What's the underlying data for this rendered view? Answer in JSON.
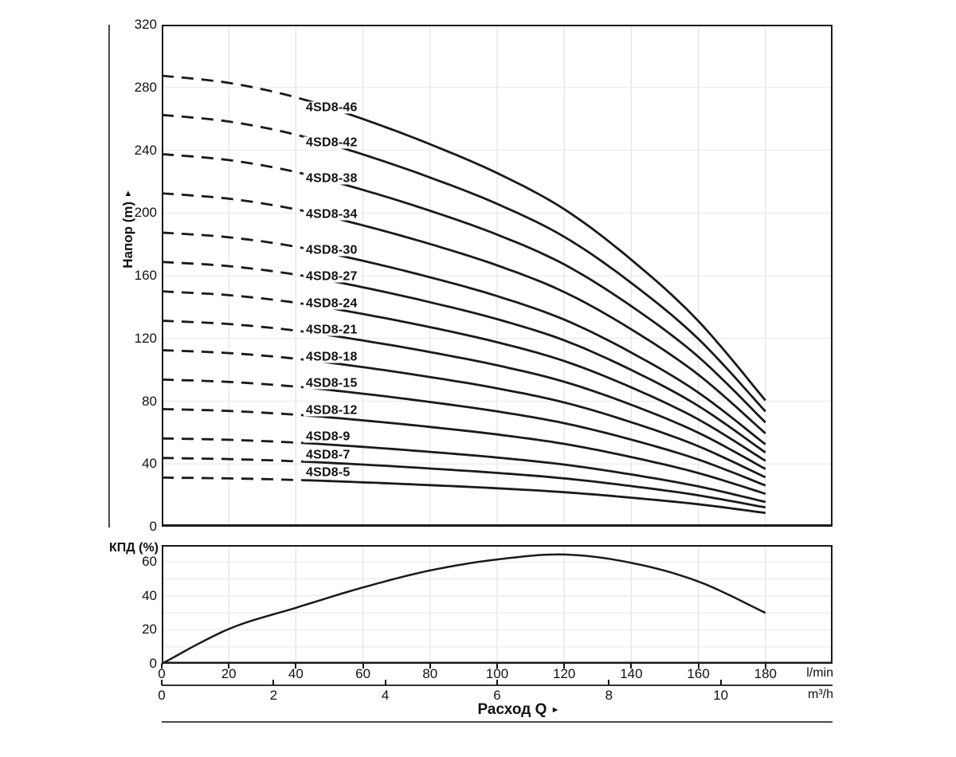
{
  "colors": {
    "curve": "#1a1a1a",
    "grid_vertical": "#e2e2e2",
    "grid_horizontal": "#eaeaea",
    "frame": "#1a1a1a",
    "rule": "#4a4a4a",
    "text": "#111111"
  },
  "chart_data": [
    {
      "id": "head_flow_chart",
      "type": "line",
      "title": "",
      "ylabel": "Напор (m)",
      "ylabel_arrow": "►",
      "ylim": [
        0,
        320
      ],
      "yticks": [
        0,
        40,
        80,
        120,
        160,
        200,
        240,
        280,
        320
      ],
      "y_gridline_step_m": 40,
      "xlim_lmin": [
        0,
        200
      ],
      "x_gridline_step_lmin": 20,
      "x_lmin": [
        0,
        20,
        40,
        60,
        80,
        100,
        120,
        140,
        160,
        180
      ],
      "dashed_until_lmin": 42,
      "grid": true,
      "legend_position": "on-curve",
      "series": [
        {
          "label": "4SD8-46",
          "values": [
            287.5,
            282.9,
            273.7,
            259.9,
            243.8,
            225.4,
            202.4,
            170.2,
            131.1,
            80.5
          ]
        },
        {
          "label": "4SD8-42",
          "values": [
            262.5,
            258.3,
            249.9,
            237.3,
            222.6,
            205.8,
            184.8,
            155.4,
            119.7,
            73.5
          ]
        },
        {
          "label": "4SD8-38",
          "values": [
            237.5,
            233.7,
            226.1,
            214.7,
            201.4,
            186.2,
            167.2,
            140.6,
            108.3,
            66.5
          ]
        },
        {
          "label": "4SD8-34",
          "values": [
            212.5,
            209.1,
            202.3,
            192.1,
            180.2,
            166.6,
            149.6,
            125.8,
            96.9,
            59.5
          ]
        },
        {
          "label": "4SD8-30",
          "values": [
            187.5,
            184.5,
            178.5,
            169.5,
            159.0,
            147.0,
            132.0,
            111.0,
            85.5,
            52.5
          ]
        },
        {
          "label": "4SD8-27",
          "values": [
            168.8,
            166.1,
            160.7,
            152.6,
            143.1,
            132.3,
            118.8,
            99.9,
            77.0,
            47.3
          ]
        },
        {
          "label": "4SD8-24",
          "values": [
            150.0,
            147.6,
            142.8,
            135.6,
            127.2,
            117.6,
            105.6,
            88.8,
            68.4,
            42.0
          ]
        },
        {
          "label": "4SD8-21",
          "values": [
            131.3,
            129.2,
            125.0,
            118.7,
            111.3,
            102.9,
            92.4,
            77.7,
            59.9,
            36.8
          ]
        },
        {
          "label": "4SD8-18",
          "values": [
            112.5,
            110.7,
            107.1,
            101.7,
            95.4,
            88.2,
            79.2,
            66.6,
            51.3,
            31.5
          ]
        },
        {
          "label": "4SD8-15",
          "values": [
            93.8,
            92.3,
            89.3,
            84.8,
            79.5,
            73.5,
            66.0,
            55.5,
            42.8,
            26.3
          ]
        },
        {
          "label": "4SD8-12",
          "values": [
            75.0,
            73.8,
            71.4,
            67.8,
            63.6,
            58.8,
            52.8,
            44.4,
            34.2,
            21.0
          ]
        },
        {
          "label": "4SD8-9",
          "values": [
            56.3,
            55.4,
            53.6,
            50.9,
            47.7,
            44.1,
            39.6,
            33.3,
            25.7,
            15.8
          ]
        },
        {
          "label": "4SD8-7",
          "values": [
            43.8,
            43.1,
            41.7,
            39.6,
            37.1,
            34.3,
            30.8,
            25.9,
            20.0,
            12.3
          ]
        },
        {
          "label": "4SD8-5",
          "values": [
            31.3,
            30.8,
            29.8,
            28.3,
            26.5,
            24.5,
            22.0,
            18.5,
            14.3,
            8.8
          ]
        }
      ]
    },
    {
      "id": "efficiency_chart",
      "type": "line",
      "title": "",
      "ylabel": "КПД (%)",
      "ylim": [
        0,
        70
      ],
      "yticks": [
        0,
        20,
        40,
        60
      ],
      "y_gridline_step_pct": 10,
      "xlim_lmin": [
        0,
        200
      ],
      "x_gridline_step_lmin": 20,
      "x_lmin": [
        0,
        20,
        40,
        60,
        80,
        100,
        120,
        140,
        160,
        180
      ],
      "values": [
        0,
        20.5,
        33,
        45,
        55,
        61.5,
        64.4,
        59.5,
        48.5,
        30
      ],
      "grid": true,
      "xticks_lmin": [
        0,
        20,
        40,
        60,
        80,
        100,
        120,
        140,
        160,
        180
      ],
      "x_unit_lmin": "l/min",
      "xticks_m3h": [
        0,
        2,
        4,
        6,
        8,
        10
      ],
      "x_unit_m3h": "m³/h",
      "xlabel": "Расход Q",
      "xlabel_arrow": "►"
    }
  ]
}
